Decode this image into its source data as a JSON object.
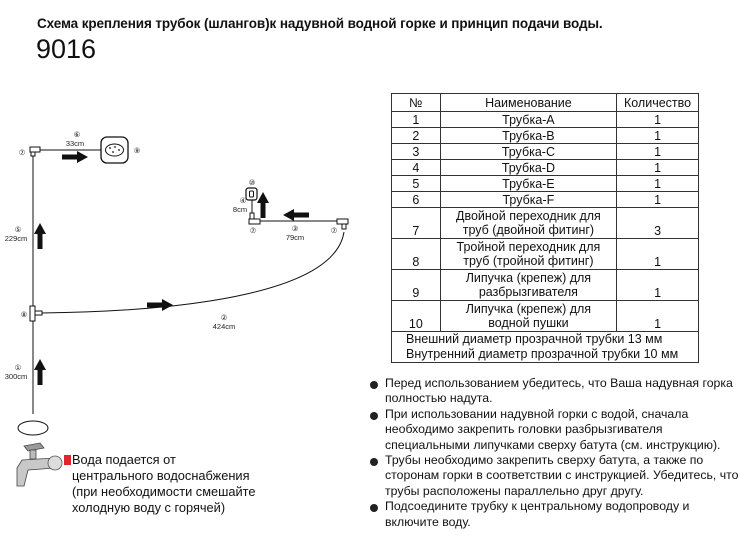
{
  "title": "Схема  крепления трубок (шлангов)к надувной водной горке и принцип подачи воды.",
  "model": "9016",
  "diagram": {
    "labels": {
      "n1": "①",
      "l1": "300cm",
      "n2": "②",
      "l2": "424cm",
      "n3": "③",
      "l3": "79cm",
      "n4": "④",
      "l4": "8cm",
      "n5": "⑤",
      "l5": "229cm",
      "n6": "⑥",
      "l6": "33cm",
      "n7": "⑦",
      "n8": "⑧",
      "n9": "⑨",
      "n10": "⑩"
    },
    "water_source_text": [
      "Вода подается от",
      "центрального водоснабжения",
      "(при необходимости смешайте",
      "холодную воду с горячей)"
    ],
    "accent_color": "#e0252b"
  },
  "table": {
    "headers": [
      "№",
      "Наименование",
      "Количество"
    ],
    "rows": [
      {
        "no": "1",
        "name": "Трубка-A",
        "qty": "1"
      },
      {
        "no": "2",
        "name": "Трубка-B",
        "qty": "1"
      },
      {
        "no": "3",
        "name": "Трубка-C",
        "qty": "1"
      },
      {
        "no": "4",
        "name": "Трубка-D",
        "qty": "1"
      },
      {
        "no": "5",
        "name": "Трубка-E",
        "qty": "1"
      },
      {
        "no": "6",
        "name": "Трубка-F",
        "qty": "1"
      },
      {
        "no": "7",
        "name1": "Двойной переходник для",
        "name2": "труб (двойной фитинг)",
        "qty": "3"
      },
      {
        "no": "8",
        "name1": "Тройной переходник для",
        "name2": "труб (тройной фитинг)",
        "qty": "1"
      },
      {
        "no": "9",
        "name1": "Липучка (крепеж) для",
        "name2": "разбрызгивателя",
        "qty": "1"
      },
      {
        "no": "10",
        "name1": "Липучка (крепеж) для",
        "name2": "водной пушки",
        "qty": "1"
      }
    ],
    "footer": [
      "Внешний диаметр прозрачной трубки  13 мм",
      "Внутренний диаметр прозрачной трубки  10 мм"
    ]
  },
  "notes": [
    "Перед использованием убедитесь, что Ваша надувная горка полностью надута.",
    "При использовании надувной горки  с водой, сначала необходимо закрепить головки разбрызгивателя специальными липучками сверху батута (см. инструкцию).",
    "Трубы необходимо закрепить сверху батута, а также по сторонам горки в соответствии с инструкцией. Убедитесь, что трубы расположены параллельно друг другу.",
    "Подсоедините трубку к центральному водопроводу и включите воду."
  ]
}
